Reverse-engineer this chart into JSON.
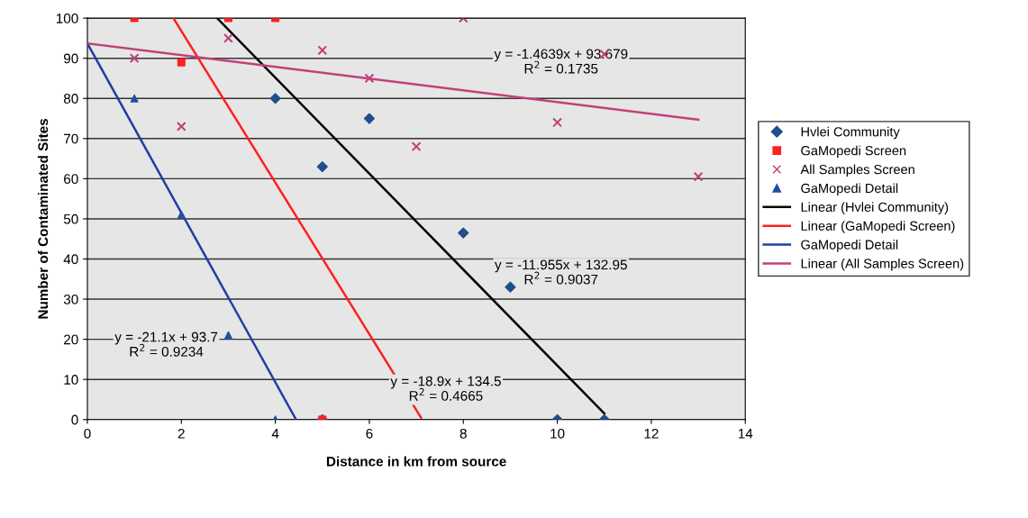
{
  "chart_data": {
    "type": "scatter",
    "xlabel": "Distance in km from source",
    "ylabel": "Number of Contaminated Sites",
    "xlim": [
      0,
      14
    ],
    "xticks": [
      0,
      2,
      4,
      6,
      8,
      10,
      12,
      14
    ],
    "ylim": [
      0,
      100
    ],
    "yticks": [
      0,
      10,
      20,
      30,
      40,
      50,
      60,
      70,
      80,
      90,
      100
    ],
    "grid": "y",
    "legend": "right",
    "series": [
      {
        "name": "Hvlei Community",
        "color": "#1f4e8c",
        "marker": "diamond",
        "x": [
          4,
          5,
          6,
          8,
          9,
          10,
          11,
          5
        ],
        "values": [
          80,
          63,
          75,
          46.5,
          33,
          0,
          0,
          0
        ]
      },
      {
        "name": "GaMopedi Screen",
        "color": "#ff2020",
        "marker": "square",
        "x": [
          1,
          2,
          3,
          4,
          5
        ],
        "values": [
          100,
          89,
          100,
          100,
          0
        ]
      },
      {
        "name": "All Samples Screen",
        "color": "#c0407a",
        "marker": "cross",
        "x": [
          1,
          2,
          3,
          5,
          6,
          7,
          8,
          10,
          11,
          13
        ],
        "values": [
          90,
          73,
          95,
          92,
          85,
          68,
          100,
          74,
          91,
          60.5
        ]
      },
      {
        "name": "GaMopedi Detail",
        "color": "#2050a0",
        "marker": "triangle",
        "x": [
          1,
          2,
          3,
          4
        ],
        "values": [
          80,
          51,
          21,
          0
        ]
      },
      {
        "name": "Linear (Hvlei Community)",
        "type": "line",
        "color": "#000000",
        "marker": "none",
        "x": [
          2.76,
          11
        ],
        "values": [
          100,
          1.5
        ]
      },
      {
        "name": "Linear (GaMopedi Screen)",
        "type": "line",
        "color": "#ff2020",
        "marker": "none",
        "x": [
          1.83,
          7.1
        ],
        "values": [
          100,
          0.5
        ]
      },
      {
        "name": "GaMopedi Detail",
        "type": "line",
        "color": "#2040a0",
        "marker": "none",
        "x": [
          0,
          4.44
        ],
        "values": [
          93.7,
          0
        ]
      },
      {
        "name": "Linear (All Samples Screen)",
        "type": "line",
        "color": "#c0407a",
        "marker": "none",
        "x": [
          0,
          13
        ],
        "values": [
          93.7,
          74.7
        ]
      }
    ],
    "annotations": [
      "y = -1.4639x + 93.679\nR$^{2}$ = 0.1735",
      "y = -11.955x + 132.95\nR$^{2}$ = 0.9037",
      "y = -21.1x + 93.7\nR$^{2}$ = 0.9234",
      "y = -18.9x + 134.5\nR$^{2}$ = 0.4665"
    ]
  }
}
